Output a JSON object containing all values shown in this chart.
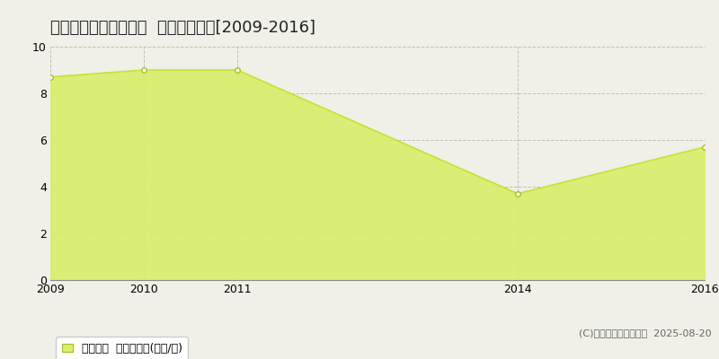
{
  "title": "中新川郡立山町二ツ塚  土地価格推移[2009-2016]",
  "years": [
    2009,
    2010,
    2011,
    2014,
    2016
  ],
  "values": [
    8.7,
    9.0,
    9.0,
    3.7,
    5.7
  ],
  "ylim": [
    0,
    10
  ],
  "yticks": [
    0,
    2,
    4,
    6,
    8,
    10
  ],
  "xlim_left": 2009,
  "xlim_right": 2016,
  "line_color": "#c8e03a",
  "fill_color": "#d8ee6a",
  "fill_alpha": 0.9,
  "marker_facecolor": "white",
  "marker_edgecolor": "#aabf20",
  "grid_color": "#c0c0b0",
  "bg_color": "#f0f0e8",
  "fig_bg_color": "#f0f0e8",
  "legend_label": "土地価格  平均坪単価(万円/坪)",
  "copyright_text": "(C)土地価格ドットコム  2025-08-20",
  "title_fontsize": 13,
  "axis_fontsize": 9,
  "legend_fontsize": 9,
  "copyright_fontsize": 8
}
